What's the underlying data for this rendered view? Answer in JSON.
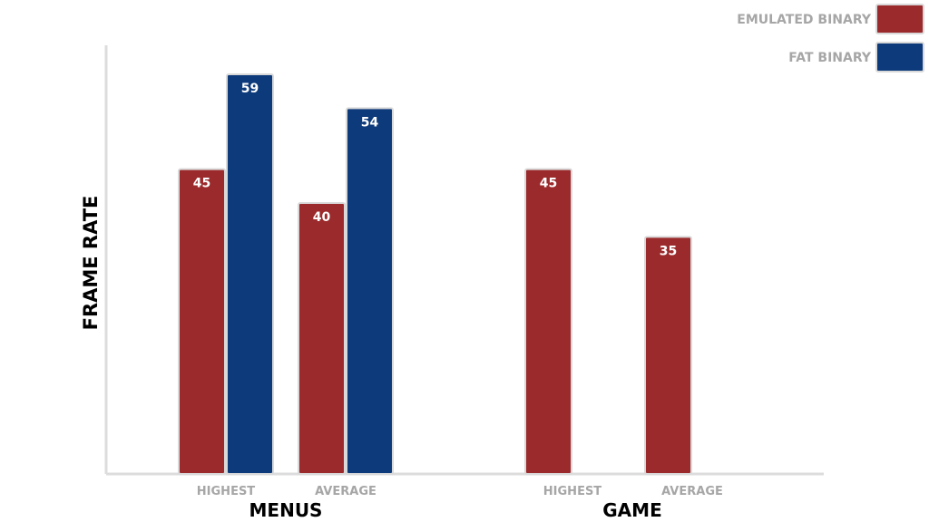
{
  "chart_data": {
    "type": "bar",
    "ylabel": "FRAME RATE",
    "groups": [
      "MENUS",
      "GAME"
    ],
    "categories": [
      "HIGHEST",
      "AVERAGE",
      "HIGHEST",
      "AVERAGE"
    ],
    "category_groups": [
      "MENUS",
      "MENUS",
      "GAME",
      "GAME"
    ],
    "series": [
      {
        "name": "EMULATED BINARY",
        "color": "#9b2a2c",
        "values": [
          45,
          40,
          45,
          35
        ]
      },
      {
        "name": "FAT BINARY",
        "color": "#0d3a7a",
        "values": [
          59,
          54,
          null,
          null
        ]
      }
    ],
    "ylim": [
      0,
      62
    ],
    "grid": false,
    "legend_position": "top-right"
  }
}
